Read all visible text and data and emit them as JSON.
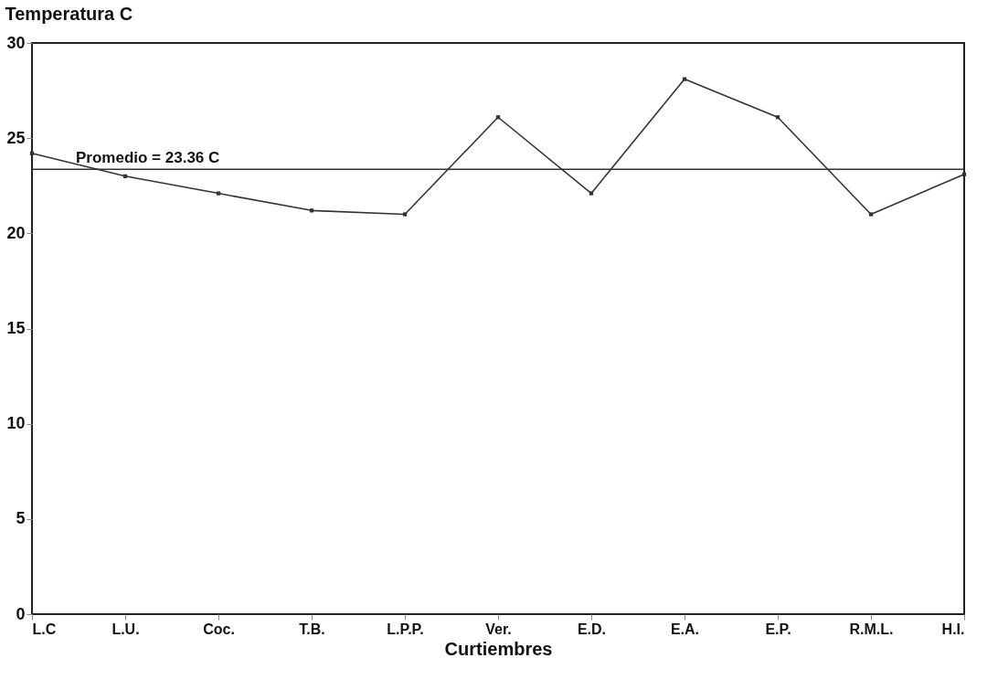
{
  "chart_data": {
    "type": "line",
    "ylabel": "Temperatura  C",
    "xlabel": "Curtiembres",
    "categories": [
      "L.C",
      "L.U.",
      "Coc.",
      "T.B.",
      "L.P.P.",
      "Ver.",
      "E.D.",
      "E.A.",
      "E.P.",
      "R.M.L.",
      "H.I."
    ],
    "series": [
      {
        "color": "#333333",
        "values": [
          24.2,
          23.0,
          22.1,
          21.2,
          21.0,
          26.1,
          22.1,
          28.1,
          26.1,
          21.0,
          23.1
        ]
      }
    ],
    "ylim": [
      0,
      30
    ],
    "yticks": [
      0,
      5,
      10,
      15,
      20,
      25,
      30
    ],
    "grid": false,
    "marker": "square",
    "ref_lines": [
      {
        "axis": "y",
        "value": 23.36,
        "label": "Promedio = 23.36  C",
        "color": "#333333"
      }
    ]
  }
}
